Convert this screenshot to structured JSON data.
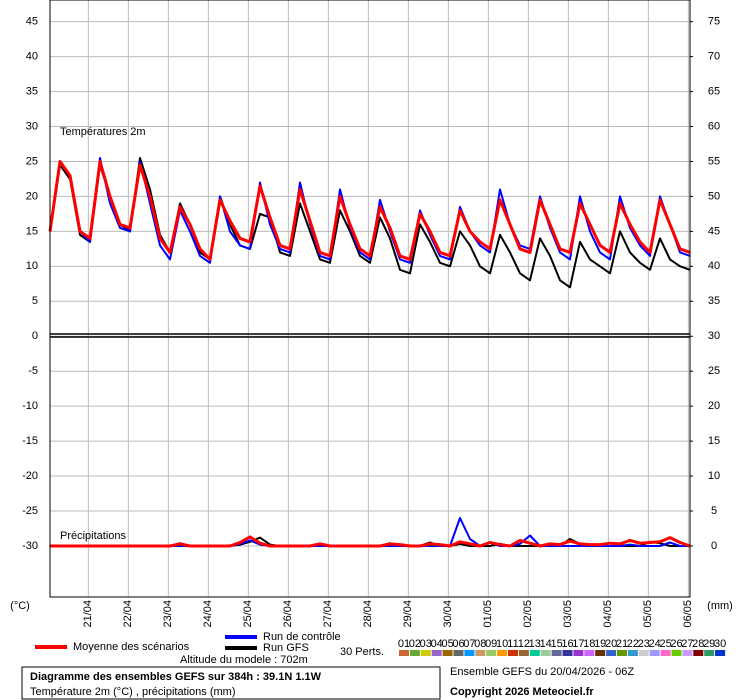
{
  "chart_data": {
    "type": "line",
    "temp_label": "Températures 2m",
    "precip_label": "Précipitations",
    "y_unit": "(°C)",
    "y2_unit": "(mm)",
    "grid": true,
    "x": [
      0,
      6,
      12,
      18,
      24,
      30,
      36,
      42,
      48,
      54,
      60,
      66,
      72,
      78,
      84,
      90,
      96,
      102,
      108,
      114,
      120,
      126,
      132,
      138,
      144,
      150,
      156,
      162,
      168,
      174,
      180,
      186,
      192,
      198,
      204,
      210,
      216,
      222,
      228,
      234,
      240,
      246,
      252,
      258,
      264,
      270,
      276,
      282,
      288,
      294,
      300,
      306,
      312,
      318,
      324,
      330,
      336,
      342,
      348,
      354,
      360,
      366,
      372,
      378,
      384
    ],
    "xlim": [
      0,
      384
    ],
    "xticks": [
      {
        "value": 23,
        "label": "21/04"
      },
      {
        "value": 47,
        "label": "22/04"
      },
      {
        "value": 71,
        "label": "23/04"
      },
      {
        "value": 95,
        "label": "24/04"
      },
      {
        "value": 119,
        "label": "25/04"
      },
      {
        "value": 143,
        "label": "26/04"
      },
      {
        "value": 167,
        "label": "27/04"
      },
      {
        "value": 191,
        "label": "28/04"
      },
      {
        "value": 215,
        "label": "29/04"
      },
      {
        "value": 239,
        "label": "30/04"
      },
      {
        "value": 263,
        "label": "01/05"
      },
      {
        "value": 287,
        "label": "02/05"
      },
      {
        "value": 311,
        "label": "03/05"
      },
      {
        "value": 335,
        "label": "04/05"
      },
      {
        "value": 359,
        "label": "05/05"
      },
      {
        "value": 383,
        "label": "06/05"
      }
    ],
    "ylim": [
      -37.3,
      48.1
    ],
    "yticks": [
      45,
      40,
      35,
      30,
      25,
      20,
      15,
      10,
      5,
      0,
      -5,
      -10,
      -15,
      -20,
      -25,
      -30
    ],
    "y2lim": [
      -7.3,
      78.1
    ],
    "y2ticks": [
      75,
      70,
      65,
      60,
      55,
      50,
      45,
      40,
      35,
      30,
      25,
      20,
      15,
      10,
      5,
      0
    ],
    "series": [
      {
        "name": "Moyenne des scénarios",
        "color": "#ff0000",
        "values": [
          15,
          25,
          23,
          15,
          14,
          25,
          20,
          16,
          15.5,
          24.5,
          20,
          14,
          12,
          18.5,
          16,
          12.5,
          11,
          19.5,
          16.5,
          14,
          13.5,
          21.5,
          17,
          13,
          12.5,
          21,
          16.5,
          12,
          11.5,
          20,
          16,
          12.5,
          11.5,
          18.5,
          15.5,
          11.5,
          11,
          17.5,
          15,
          12,
          11.5,
          18,
          15,
          13.5,
          12.5,
          19.5,
          16,
          12.5,
          12,
          19.5,
          16,
          12.5,
          12,
          19,
          16,
          13,
          12,
          19,
          16,
          13.5,
          12,
          19.5,
          16,
          12.5,
          12
        ],
        "precip_values": [
          0,
          0,
          0,
          0,
          0,
          0,
          0,
          0,
          0,
          0,
          0,
          0,
          0,
          0.3,
          0,
          0,
          0,
          0,
          0,
          0.5,
          1.3,
          0.4,
          0,
          0,
          0,
          0,
          0,
          0.3,
          0,
          0,
          0,
          0,
          0,
          0,
          0.3,
          0.2,
          0,
          0,
          0.3,
          0.2,
          0,
          0.6,
          0.3,
          0,
          0.5,
          0.2,
          0,
          0.8,
          0.4,
          0,
          0.3,
          0.2,
          0.7,
          0.3,
          0.2,
          0.2,
          0.4,
          0.3,
          0.8,
          0.4,
          0.5,
          0.6,
          1.2,
          0.5,
          0
        ]
      },
      {
        "name": "Run de contrôle",
        "color": "#0000ff",
        "values": [
          15,
          25,
          23,
          15,
          13.5,
          25.5,
          19,
          15.5,
          15,
          25,
          19,
          13,
          11,
          18,
          15,
          11.5,
          10.5,
          20,
          15,
          13,
          12.5,
          22,
          16,
          12.5,
          12,
          22,
          16,
          11.5,
          11,
          21,
          15.5,
          12,
          11,
          19.5,
          15,
          11,
          10.5,
          18,
          14.5,
          11.5,
          11,
          18.5,
          15,
          13,
          12,
          21,
          16,
          13,
          12.5,
          20,
          15.5,
          12,
          11,
          20,
          15,
          12,
          11,
          20,
          15.5,
          13,
          11.5,
          20,
          16,
          12,
          11.5
        ],
        "precip_values": [
          0,
          0,
          0,
          0,
          0,
          0,
          0,
          0,
          0,
          0,
          0,
          0,
          0,
          0,
          0,
          0,
          0,
          0,
          0,
          0.3,
          0.8,
          0.2,
          0,
          0,
          0,
          0,
          0,
          0,
          0,
          0,
          0,
          0,
          0,
          0,
          0,
          0,
          0,
          0,
          0,
          0,
          0,
          4,
          1,
          0,
          0.5,
          0,
          0,
          0.3,
          1.5,
          0,
          0,
          0,
          0,
          0,
          0,
          0,
          0,
          0,
          0.2,
          0,
          0,
          0,
          0.5,
          0,
          0
        ]
      },
      {
        "name": "Run GFS",
        "color": "#000000",
        "values": [
          15,
          24.5,
          22.5,
          14.5,
          13.5,
          24.5,
          20,
          16,
          15,
          25.5,
          21,
          14.5,
          12,
          19,
          16,
          12,
          11,
          20,
          16,
          13,
          12.5,
          17.5,
          17,
          12,
          11.5,
          19,
          15,
          11,
          10.5,
          18,
          15,
          11.5,
          10.5,
          17,
          14,
          9.5,
          9,
          16,
          13.5,
          10.5,
          10,
          15,
          13,
          10,
          9,
          14.5,
          12,
          9,
          8,
          14,
          11.5,
          8,
          7,
          13.5,
          11,
          10,
          9,
          15,
          12,
          10.5,
          9.5,
          14,
          11,
          10,
          9.5
        ],
        "precip_values": [
          0,
          0,
          0,
          0,
          0,
          0,
          0,
          0,
          0,
          0,
          0,
          0,
          0,
          0.4,
          0,
          0,
          0,
          0,
          0,
          0.2,
          0.6,
          1.2,
          0.2,
          0,
          0,
          0,
          0,
          0,
          0,
          0,
          0,
          0,
          0,
          0,
          0.4,
          0,
          0,
          0,
          0.5,
          0,
          0,
          0.3,
          0,
          0,
          0,
          0.3,
          0,
          0,
          0,
          0,
          0,
          0,
          1,
          0.3,
          0,
          0,
          0,
          0,
          0,
          0,
          0.6,
          0.4,
          0,
          0,
          0
        ]
      }
    ],
    "altitude_label": "Altitude du modele : 702m",
    "perturbations": {
      "label": "30 Perts.",
      "members": [
        {
          "name": "01",
          "color": "#cc6633"
        },
        {
          "name": "02",
          "color": "#66aa33"
        },
        {
          "name": "03",
          "color": "#cccc00"
        },
        {
          "name": "04",
          "color": "#9966cc"
        },
        {
          "name": "05",
          "color": "#996600"
        },
        {
          "name": "06",
          "color": "#666666"
        },
        {
          "name": "07",
          "color": "#0099ff"
        },
        {
          "name": "08",
          "color": "#cc9966"
        },
        {
          "name": "09",
          "color": "#99cc66"
        },
        {
          "name": "10",
          "color": "#ff9900"
        },
        {
          "name": "11",
          "color": "#cc3300"
        },
        {
          "name": "12",
          "color": "#996633"
        },
        {
          "name": "13",
          "color": "#00cc99"
        },
        {
          "name": "14",
          "color": "#99cc99"
        },
        {
          "name": "15",
          "color": "#666699"
        },
        {
          "name": "16",
          "color": "#333399"
        },
        {
          "name": "17",
          "color": "#9933cc"
        },
        {
          "name": "18",
          "color": "#cc66ff"
        },
        {
          "name": "19",
          "color": "#663300"
        },
        {
          "name": "20",
          "color": "#3366cc"
        },
        {
          "name": "21",
          "color": "#669900"
        },
        {
          "name": "22",
          "color": "#3399cc"
        },
        {
          "name": "23",
          "color": "#cccccc"
        },
        {
          "name": "24",
          "color": "#9999ff"
        },
        {
          "name": "25",
          "color": "#ff66cc"
        },
        {
          "name": "26",
          "color": "#66cc00"
        },
        {
          "name": "27",
          "color": "#cc99ff"
        },
        {
          "name": "28",
          "color": "#800000"
        },
        {
          "name": "29",
          "color": "#339966"
        },
        {
          "name": "30",
          "color": "#0033cc"
        }
      ]
    },
    "title": "Diagramme des ensembles GEFS sur 384h : 39.1N 1.1W",
    "subtitle": "Température 2m (°C) , précipitations (mm)",
    "run_label": "Ensemble GEFS du 20/04/2026 - 06Z",
    "copyright": "Copyright 2026 Meteociel.fr"
  }
}
